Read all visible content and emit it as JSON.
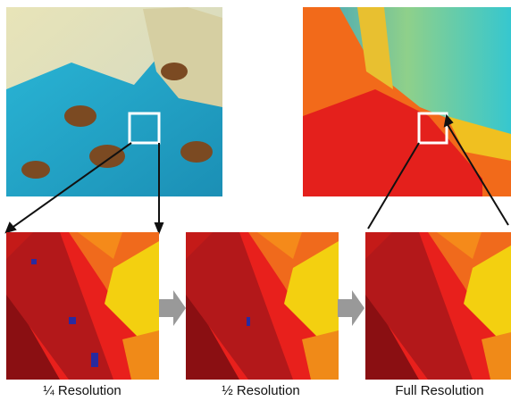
{
  "captions": [
    "¼ Resolution",
    "½ Resolution",
    "Full Resolution"
  ]
}
